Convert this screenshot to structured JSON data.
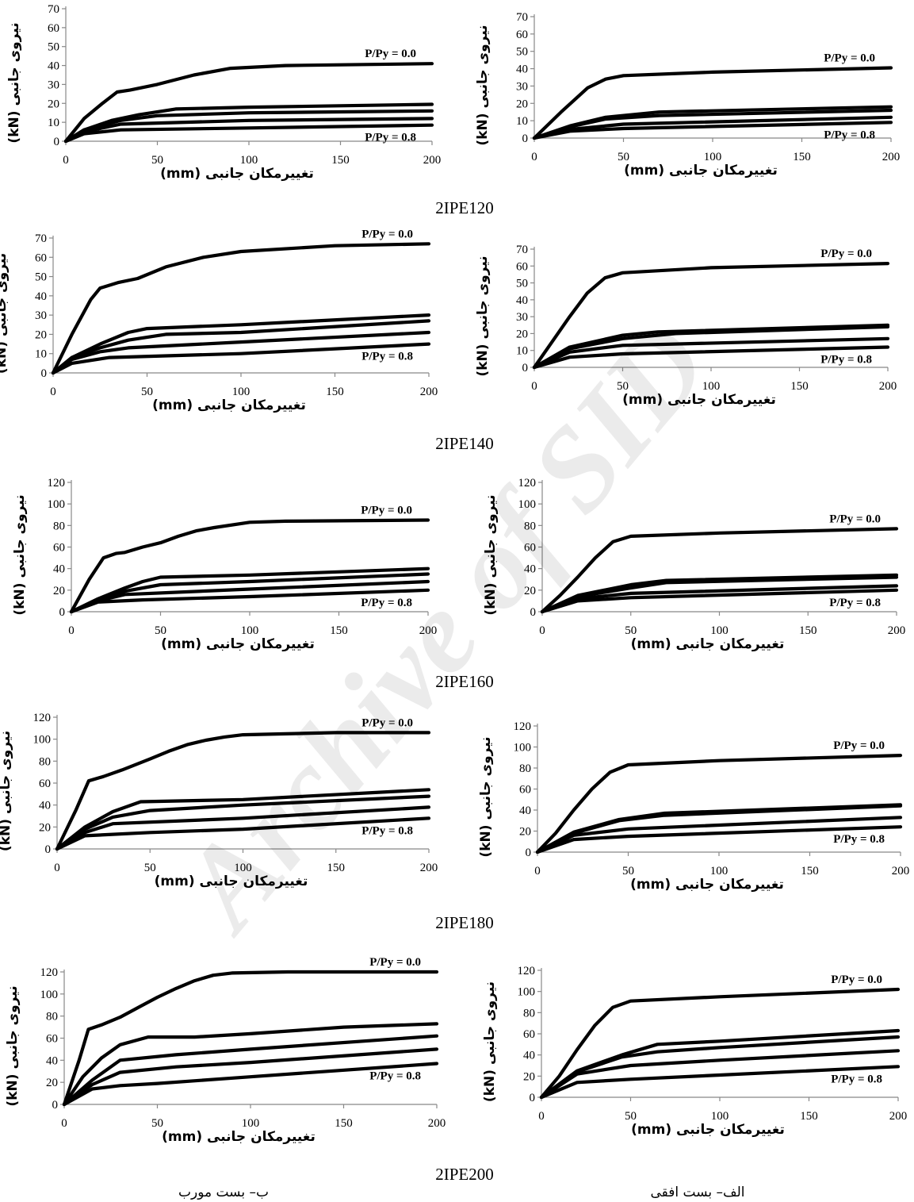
{
  "row_captions": [
    "2IPE120",
    "2IPE140",
    "2IPE160",
    "2IPE180",
    "2IPE200"
  ],
  "column_captions": {
    "right": "الف– بست افقی",
    "left": "ب– بست مورب"
  },
  "watermark": "Archive of SID",
  "chart_data": [
    {
      "id": "2IPE120-left",
      "type": "line",
      "xlabel": "تغییرمکان جانبی (mm)",
      "ylabel": "نیروی جانبی (kN)",
      "xlim": [
        0,
        200
      ],
      "ylim": [
        0,
        70
      ],
      "xticks": [
        0,
        50,
        100,
        150,
        200
      ],
      "yticks": [
        0,
        10,
        20,
        30,
        40,
        50,
        60,
        70
      ],
      "annotations": {
        "top": "P/Py = 0.0",
        "bottom": "P/Py = 0.8"
      },
      "series": [
        {
          "x": [
            0,
            10,
            20,
            28,
            35,
            50,
            70,
            90,
            120,
            200
          ],
          "y": [
            0,
            12,
            20,
            26,
            27,
            30,
            35,
            38.5,
            40,
            41
          ]
        },
        {
          "x": [
            0,
            10,
            25,
            40,
            60,
            100,
            200
          ],
          "y": [
            0,
            6,
            11,
            14,
            17,
            18,
            19.5
          ]
        },
        {
          "x": [
            0,
            10,
            30,
            50,
            100,
            200
          ],
          "y": [
            0,
            6,
            11,
            13.5,
            15,
            16
          ]
        },
        {
          "x": [
            0,
            10,
            30,
            100,
            200
          ],
          "y": [
            0,
            5,
            9,
            11,
            12
          ]
        },
        {
          "x": [
            0,
            10,
            30,
            100,
            200
          ],
          "y": [
            0,
            4,
            6,
            7,
            8.5
          ]
        }
      ]
    },
    {
      "id": "2IPE120-right",
      "type": "line",
      "xlabel": "تغییرمکان جانبی (mm)",
      "ylabel": "نیروی جانبی (kN)",
      "xlim": [
        0,
        200
      ],
      "ylim": [
        0,
        70
      ],
      "xticks": [
        0,
        50,
        100,
        150,
        200
      ],
      "yticks": [
        0,
        10,
        20,
        30,
        40,
        50,
        60,
        70
      ],
      "annotations": {
        "top": "P/Py = 0.0",
        "bottom": "P/Py = 0.8"
      },
      "series": [
        {
          "x": [
            0,
            15,
            30,
            40,
            50,
            100,
            200
          ],
          "y": [
            0,
            15,
            29,
            34,
            36,
            38,
            40.5
          ]
        },
        {
          "x": [
            0,
            20,
            40,
            70,
            200
          ],
          "y": [
            0,
            7,
            12,
            15,
            18
          ]
        },
        {
          "x": [
            0,
            20,
            40,
            70,
            200
          ],
          "y": [
            0,
            6.5,
            11,
            13,
            16
          ]
        },
        {
          "x": [
            0,
            20,
            50,
            200
          ],
          "y": [
            0,
            5,
            8,
            12
          ]
        },
        {
          "x": [
            0,
            20,
            50,
            200
          ],
          "y": [
            0,
            4,
            5.5,
            9
          ]
        }
      ]
    },
    {
      "id": "2IPE140-left",
      "type": "line",
      "xlabel": "تغییرمکان جانبی (mm)",
      "ylabel": "نیروی جانبی (kN)",
      "xlim": [
        0,
        200
      ],
      "ylim": [
        0,
        70
      ],
      "xticks": [
        0,
        50,
        100,
        150,
        200
      ],
      "yticks": [
        0,
        10,
        20,
        30,
        40,
        50,
        60,
        70
      ],
      "annotations": {
        "top": "P/Py = 0.0",
        "bottom": "P/Py = 0.8"
      },
      "series": [
        {
          "x": [
            0,
            10,
            20,
            25,
            35,
            45,
            60,
            80,
            100,
            150,
            200
          ],
          "y": [
            0,
            20,
            38,
            44,
            47,
            49,
            55,
            60,
            63,
            66,
            67
          ]
        },
        {
          "x": [
            0,
            10,
            25,
            40,
            50,
            100,
            200
          ],
          "y": [
            0,
            8,
            15,
            21,
            23,
            25,
            30
          ]
        },
        {
          "x": [
            0,
            10,
            25,
            40,
            60,
            100,
            200
          ],
          "y": [
            0,
            8,
            13,
            17,
            20,
            21,
            27
          ]
        },
        {
          "x": [
            0,
            10,
            25,
            40,
            100,
            200
          ],
          "y": [
            0,
            7,
            11,
            13,
            16,
            21
          ]
        },
        {
          "x": [
            0,
            10,
            30,
            100,
            200
          ],
          "y": [
            0,
            5,
            8,
            10,
            15
          ]
        }
      ]
    },
    {
      "id": "2IPE140-right",
      "type": "line",
      "xlabel": "تغییرمکان جانبی (mm)",
      "ylabel": "نیروی جانبی (kN)",
      "xlim": [
        0,
        200
      ],
      "ylim": [
        0,
        70
      ],
      "xticks": [
        0,
        50,
        100,
        150,
        200
      ],
      "yticks": [
        0,
        10,
        20,
        30,
        40,
        50,
        60,
        70
      ],
      "annotations": {
        "top": "P/Py = 0.0",
        "bottom": "P/Py = 0.8"
      },
      "series": [
        {
          "x": [
            0,
            10,
            20,
            30,
            40,
            50,
            100,
            200
          ],
          "y": [
            0,
            15,
            30,
            44,
            53,
            56,
            59,
            61.5
          ]
        },
        {
          "x": [
            0,
            20,
            50,
            70,
            200
          ],
          "y": [
            0,
            12,
            19,
            21,
            25
          ]
        },
        {
          "x": [
            0,
            20,
            50,
            80,
            200
          ],
          "y": [
            0,
            11,
            17,
            20,
            24
          ]
        },
        {
          "x": [
            0,
            20,
            50,
            200
          ],
          "y": [
            0,
            9,
            13,
            17
          ]
        },
        {
          "x": [
            0,
            20,
            50,
            200
          ],
          "y": [
            0,
            6,
            8,
            12
          ]
        }
      ]
    },
    {
      "id": "2IPE160-left",
      "type": "line",
      "xlabel": "تغییرمکان جانبی (mm)",
      "ylabel": "نیروی جانبی (kN)",
      "xlim": [
        0,
        200
      ],
      "ylim": [
        0,
        120
      ],
      "xticks": [
        0,
        50,
        100,
        150,
        200
      ],
      "yticks": [
        0,
        20,
        40,
        60,
        80,
        100,
        120
      ],
      "annotations": {
        "top": "P/Py = 0.0",
        "bottom": "P/Py = 0.8"
      },
      "series": [
        {
          "x": [
            0,
            10,
            18,
            25,
            30,
            40,
            50,
            60,
            70,
            80,
            100,
            120,
            200
          ],
          "y": [
            0,
            30,
            50,
            54,
            55,
            60,
            64,
            70,
            75,
            78,
            83,
            84,
            85
          ]
        },
        {
          "x": [
            0,
            15,
            30,
            40,
            50,
            100,
            200
          ],
          "y": [
            0,
            12,
            22,
            28,
            32,
            34,
            40
          ]
        },
        {
          "x": [
            0,
            15,
            30,
            50,
            100,
            200
          ],
          "y": [
            0,
            11,
            19,
            25,
            28,
            35
          ]
        },
        {
          "x": [
            0,
            15,
            30,
            100,
            200
          ],
          "y": [
            0,
            10,
            16,
            21,
            28
          ]
        },
        {
          "x": [
            0,
            15,
            40,
            100,
            200
          ],
          "y": [
            0,
            9,
            11,
            14,
            20
          ]
        }
      ]
    },
    {
      "id": "2IPE160-right",
      "type": "line",
      "xlabel": "تغییرمکان جانبی (mm)",
      "ylabel": "نیروی جانبی (kN)",
      "xlim": [
        0,
        200
      ],
      "ylim": [
        0,
        120
      ],
      "xticks": [
        0,
        50,
        100,
        150,
        200
      ],
      "yticks": [
        0,
        20,
        40,
        60,
        80,
        100,
        120
      ],
      "annotations": {
        "top": "P/Py = 0.0",
        "bottom": "P/Py = 0.8"
      },
      "series": [
        {
          "x": [
            0,
            10,
            20,
            30,
            40,
            50,
            100,
            200
          ],
          "y": [
            0,
            15,
            32,
            50,
            65,
            70,
            73,
            77
          ]
        },
        {
          "x": [
            0,
            20,
            50,
            70,
            200
          ],
          "y": [
            0,
            15,
            25,
            29,
            34
          ]
        },
        {
          "x": [
            0,
            20,
            50,
            70,
            200
          ],
          "y": [
            0,
            14,
            22,
            27,
            32
          ]
        },
        {
          "x": [
            0,
            20,
            50,
            200
          ],
          "y": [
            0,
            12,
            17,
            24
          ]
        },
        {
          "x": [
            0,
            20,
            50,
            200
          ],
          "y": [
            0,
            10,
            13,
            20
          ]
        }
      ]
    },
    {
      "id": "2IPE180-left",
      "type": "line",
      "xlabel": "تغییرمکان جانبی (mm)",
      "ylabel": "نیروی جانبی (kN)",
      "xlim": [
        0,
        200
      ],
      "ylim": [
        0,
        120
      ],
      "xticks": [
        0,
        50,
        100,
        150,
        200
      ],
      "yticks": [
        0,
        20,
        40,
        60,
        80,
        100,
        120
      ],
      "annotations": {
        "top": "P/Py = 0.0",
        "bottom": "P/Py = 0.8"
      },
      "series": [
        {
          "x": [
            0,
            10,
            17,
            25,
            35,
            50,
            60,
            70,
            80,
            90,
            100,
            150,
            200
          ],
          "y": [
            0,
            35,
            62,
            66,
            72,
            82,
            89,
            95,
            99,
            102,
            104,
            106,
            106
          ]
        },
        {
          "x": [
            0,
            15,
            30,
            45,
            100,
            200
          ],
          "y": [
            0,
            20,
            34,
            43,
            45,
            54
          ]
        },
        {
          "x": [
            0,
            15,
            30,
            50,
            100,
            200
          ],
          "y": [
            0,
            18,
            29,
            35,
            40,
            48
          ]
        },
        {
          "x": [
            0,
            15,
            30,
            100,
            200
          ],
          "y": [
            0,
            15,
            23,
            28,
            38
          ]
        },
        {
          "x": [
            0,
            15,
            50,
            100,
            200
          ],
          "y": [
            0,
            12,
            15,
            18,
            28
          ]
        }
      ]
    },
    {
      "id": "2IPE180-right",
      "type": "line",
      "xlabel": "تغییرمکان جانبی (mm)",
      "ylabel": "نیروی جانبی (kN)",
      "xlim": [
        0,
        200
      ],
      "ylim": [
        0,
        120
      ],
      "xticks": [
        0,
        50,
        100,
        150,
        200
      ],
      "yticks": [
        0,
        20,
        40,
        60,
        80,
        100,
        120
      ],
      "annotations": {
        "top": "P/Py = 0.0",
        "bottom": "P/Py = 0.8"
      },
      "series": [
        {
          "x": [
            0,
            10,
            20,
            30,
            40,
            50,
            100,
            200
          ],
          "y": [
            0,
            18,
            40,
            60,
            76,
            83,
            87,
            92
          ]
        },
        {
          "x": [
            0,
            20,
            45,
            70,
            200
          ],
          "y": [
            0,
            19,
            31,
            37,
            45
          ]
        },
        {
          "x": [
            0,
            20,
            45,
            70,
            200
          ],
          "y": [
            0,
            18,
            30,
            35,
            44
          ]
        },
        {
          "x": [
            0,
            20,
            50,
            200
          ],
          "y": [
            0,
            16,
            22,
            33
          ]
        },
        {
          "x": [
            0,
            20,
            50,
            200
          ],
          "y": [
            0,
            12,
            15,
            24
          ]
        }
      ]
    },
    {
      "id": "2IPE200-left",
      "type": "line",
      "xlabel": "تغییرمکان جانبی (mm)",
      "ylabel": "نیروی جانبی (kN)",
      "xlim": [
        0,
        200
      ],
      "ylim": [
        0,
        120
      ],
      "xticks": [
        0,
        50,
        100,
        150,
        200
      ],
      "yticks": [
        0,
        20,
        40,
        60,
        80,
        100,
        120
      ],
      "annotations": {
        "top": "P/Py = 0.0",
        "bottom": "P/Py = 0.8"
      },
      "series": [
        {
          "x": [
            0,
            8,
            13,
            20,
            30,
            40,
            50,
            60,
            70,
            80,
            90,
            120,
            200
          ],
          "y": [
            0,
            40,
            68,
            72,
            79,
            88,
            97,
            105,
            112,
            117,
            119,
            120,
            120
          ]
        },
        {
          "x": [
            0,
            10,
            20,
            30,
            45,
            70,
            100,
            150,
            200
          ],
          "y": [
            0,
            25,
            42,
            54,
            61,
            61,
            64,
            70,
            73
          ]
        },
        {
          "x": [
            0,
            15,
            30,
            60,
            100,
            200
          ],
          "y": [
            0,
            22,
            40,
            45,
            50,
            62
          ]
        },
        {
          "x": [
            0,
            15,
            30,
            60,
            100,
            200
          ],
          "y": [
            0,
            18,
            29,
            34,
            38,
            50
          ]
        },
        {
          "x": [
            0,
            15,
            30,
            50,
            100,
            200
          ],
          "y": [
            0,
            14,
            17,
            19,
            25,
            37
          ]
        }
      ]
    },
    {
      "id": "2IPE200-right",
      "type": "line",
      "xlabel": "تغییرمکان جانبی (mm)",
      "ylabel": "نیروی جانبی (kN)",
      "xlim": [
        0,
        200
      ],
      "ylim": [
        0,
        120
      ],
      "xticks": [
        0,
        50,
        100,
        150,
        200
      ],
      "yticks": [
        0,
        20,
        40,
        60,
        80,
        100,
        120
      ],
      "annotations": {
        "top": "P/Py = 0.0",
        "bottom": "P/Py = 0.8"
      },
      "series": [
        {
          "x": [
            0,
            10,
            20,
            30,
            40,
            50,
            100,
            200
          ],
          "y": [
            0,
            20,
            45,
            68,
            85,
            91,
            95,
            102
          ]
        },
        {
          "x": [
            0,
            20,
            45,
            65,
            100,
            200
          ],
          "y": [
            0,
            25,
            40,
            50,
            53,
            63
          ]
        },
        {
          "x": [
            0,
            20,
            45,
            65,
            100,
            200
          ],
          "y": [
            0,
            24,
            38,
            43,
            47,
            57
          ]
        },
        {
          "x": [
            0,
            20,
            50,
            100,
            200
          ],
          "y": [
            0,
            22,
            30,
            35,
            44
          ]
        },
        {
          "x": [
            0,
            20,
            50,
            100,
            200
          ],
          "y": [
            0,
            14,
            17,
            21,
            29
          ]
        }
      ]
    }
  ]
}
